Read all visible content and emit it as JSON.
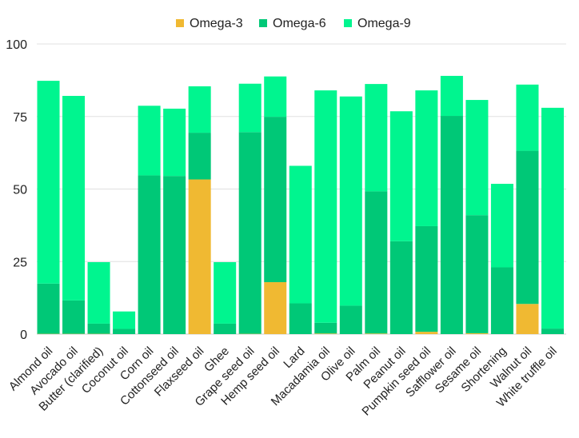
{
  "chart_data": {
    "type": "bar",
    "stacked": true,
    "title": "",
    "xlabel": "",
    "ylabel": "",
    "ylim": [
      0,
      100
    ],
    "yticks": [
      0,
      25,
      50,
      75,
      100
    ],
    "grid": true,
    "legend_position": "top",
    "categories": [
      "Almond oil",
      "Avocado oil",
      "Butter (clarified)",
      "Coconut oil",
      "Corn oil",
      "Cottonseed oil",
      "Flaxseed oil",
      "Ghee",
      "Grape seed oil",
      "Hemp seed oil",
      "Lard",
      "Macadamia oil",
      "Olive oil",
      "Palm oil",
      "Peanut oil",
      "Pumpkin seed oil",
      "Safflower oil",
      "Sesame oil",
      "Shortening",
      "Walnut oil",
      "White truffle oil"
    ],
    "series": [
      {
        "name": "Omega-3",
        "color": "#f0b932",
        "values": [
          0.1,
          0.1,
          0.1,
          0,
          0,
          0,
          53.3,
          0,
          0.1,
          17.9,
          0,
          0.2,
          0,
          0.2,
          0,
          0.8,
          0,
          0.3,
          0,
          10.4,
          0
        ]
      },
      {
        "name": "Omega-6",
        "color": "#00c877",
        "values": [
          17.3,
          11.5,
          3.5,
          1.8,
          54.7,
          54.5,
          16.1,
          3.6,
          69.5,
          57,
          10.6,
          3.7,
          9.8,
          49,
          32,
          36.4,
          75.2,
          40.7,
          23,
          52.8,
          1.9
        ]
      },
      {
        "name": "Omega-9",
        "color": "#00f58f",
        "values": [
          69.9,
          70.5,
          21.2,
          6,
          24,
          23.2,
          16,
          21.2,
          16.7,
          13.9,
          47.4,
          80.1,
          72.1,
          37,
          44.8,
          46.8,
          13.8,
          39.7,
          28.8,
          22.8,
          76.1
        ]
      }
    ]
  }
}
